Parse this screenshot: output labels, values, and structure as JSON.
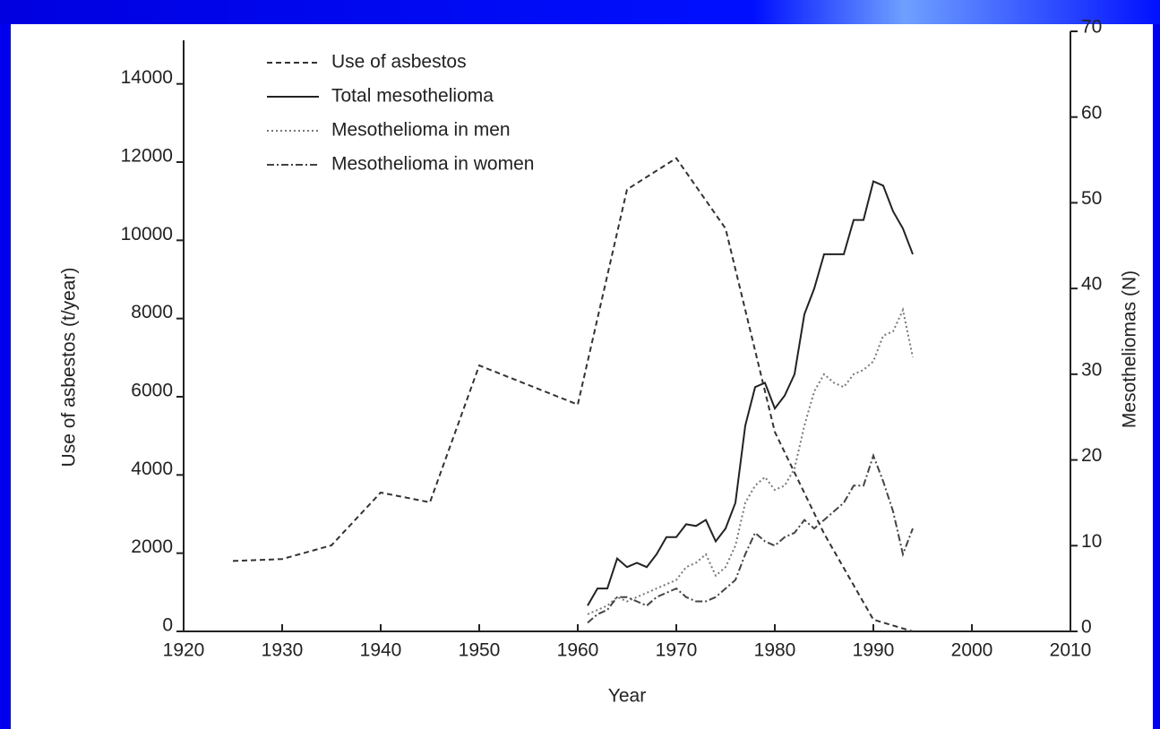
{
  "chart_data": {
    "type": "line",
    "xlabel": "Year",
    "ylabel": "Use of asbestos  (t/year)",
    "y2label": "Mesotheliomas  (N)",
    "xlim": [
      1920,
      2010
    ],
    "xticks": [
      1920,
      1930,
      1940,
      1950,
      1960,
      1970,
      1980,
      1990,
      2000,
      2010
    ],
    "ylim": [
      0,
      15000
    ],
    "yticks": [
      0,
      2000,
      4000,
      6000,
      8000,
      10000,
      12000,
      14000
    ],
    "y2lim": [
      0,
      70
    ],
    "y2ticks": [
      0,
      10,
      20,
      30,
      40,
      50,
      60,
      70
    ],
    "legend": "upper left",
    "series": [
      {
        "name": "Use of asbestos",
        "color": "#333333",
        "style": "dashed",
        "x": [
          1925,
          1930,
          1935,
          1940,
          1945,
          1950,
          1960,
          1965,
          1970,
          1975,
          1980,
          1985,
          1990,
          1994
        ],
        "values": [
          1800,
          1850,
          2200,
          3550,
          3300,
          6800,
          5800,
          11300,
          12100,
          10300,
          5100,
          2500,
          300,
          0
        ]
      },
      {
        "name": "Total mesothelioma",
        "color": "#222222",
        "style": "solid",
        "axis": "y2",
        "x": [
          1961,
          1962,
          1963,
          1964,
          1965,
          1966,
          1967,
          1968,
          1969,
          1970,
          1971,
          1972,
          1973,
          1974,
          1975,
          1976,
          1977,
          1978,
          1979,
          1980,
          1981,
          1982,
          1983,
          1984,
          1985,
          1986,
          1987,
          1988,
          1989,
          1990,
          1991,
          1992,
          1993,
          1994
        ],
        "values": [
          3,
          5,
          5,
          8.5,
          7.5,
          8,
          7.5,
          9,
          11,
          11,
          12.5,
          12.3,
          13,
          10.5,
          12,
          15,
          24,
          28.5,
          29,
          26,
          27.5,
          30,
          37,
          40,
          44,
          44,
          44,
          48,
          48,
          52.5,
          52,
          49,
          47,
          44
        ]
      },
      {
        "name": "Mesothelioma in men",
        "color": "#777777",
        "style": "dotted",
        "axis": "y2",
        "x": [
          1961,
          1962,
          1963,
          1964,
          1965,
          1966,
          1967,
          1968,
          1969,
          1970,
          1971,
          1972,
          1973,
          1974,
          1975,
          1976,
          1977,
          1978,
          1979,
          1980,
          1981,
          1982,
          1983,
          1984,
          1985,
          1986,
          1987,
          1988,
          1989,
          1990,
          1991,
          1992,
          1993,
          1994
        ],
        "values": [
          2,
          2.5,
          3,
          4,
          3.5,
          4,
          4.5,
          5,
          5.5,
          6,
          7.5,
          8,
          9,
          6.5,
          7.5,
          10,
          15,
          17,
          18,
          16.5,
          17,
          19,
          24,
          28,
          30,
          29,
          28.5,
          30,
          30.5,
          31.5,
          34.5,
          35,
          37.5,
          32
        ]
      },
      {
        "name": "Mesothelioma in women",
        "color": "#444444",
        "style": "dashdot",
        "axis": "y2",
        "x": [
          1961,
          1962,
          1963,
          1964,
          1965,
          1966,
          1967,
          1968,
          1969,
          1970,
          1971,
          1972,
          1973,
          1974,
          1975,
          1976,
          1977,
          1978,
          1979,
          1980,
          1981,
          1982,
          1983,
          1984,
          1985,
          1986,
          1987,
          1988,
          1989,
          1990,
          1991,
          1992,
          1993,
          1994
        ],
        "values": [
          1,
          2,
          2.5,
          4,
          4,
          3.5,
          3,
          4,
          4.5,
          5,
          4,
          3.5,
          3.5,
          4,
          5,
          6,
          9,
          11.5,
          10.5,
          10,
          11,
          11.5,
          13,
          12,
          13,
          14,
          15,
          17,
          17,
          20.5,
          17.5,
          14,
          9,
          12
        ]
      }
    ]
  }
}
